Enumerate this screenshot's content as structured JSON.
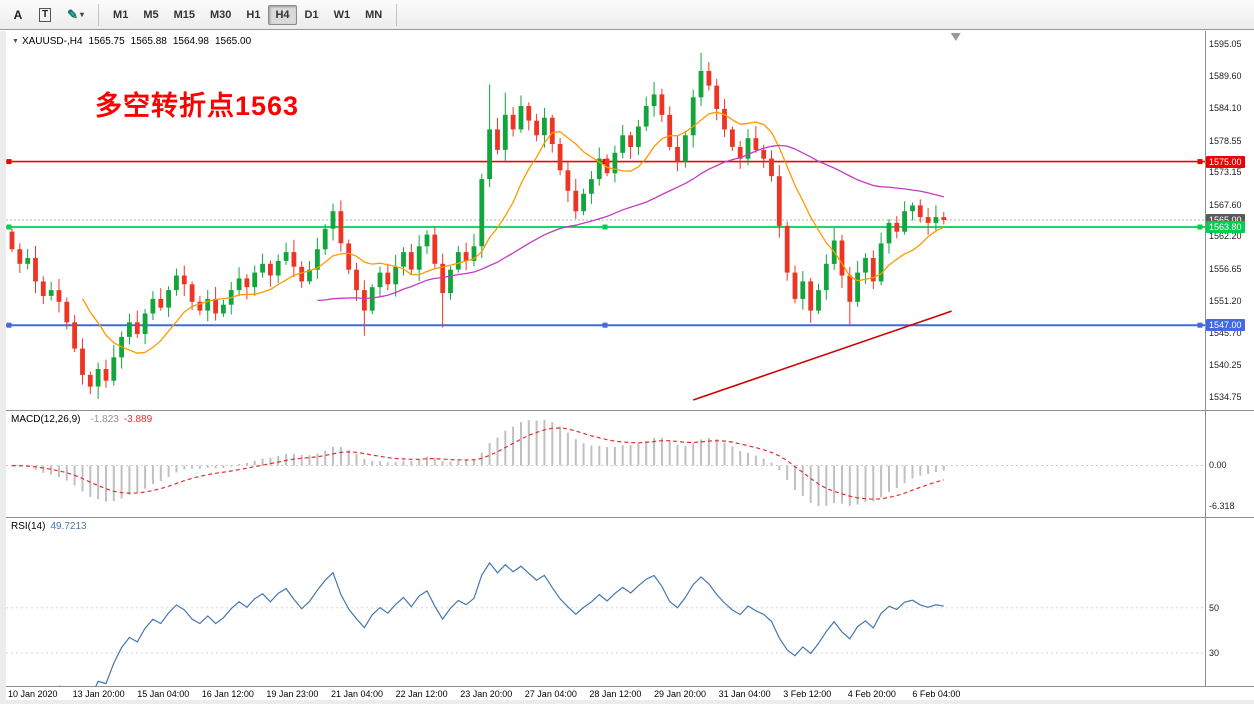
{
  "toolbar": {
    "tool_buttons": [
      {
        "name": "cursor-tool",
        "label": "A"
      },
      {
        "name": "text-tool",
        "label": "T"
      }
    ],
    "draw_dropdown": {
      "glyph": "✎",
      "arrow": "▾"
    },
    "timeframes": [
      "M1",
      "M5",
      "M15",
      "M30",
      "H1",
      "H4",
      "D1",
      "W1",
      "MN"
    ],
    "active_timeframe": "H4"
  },
  "chart": {
    "symbol_title": "XAUUSD-,H4",
    "expand_icon": "▼",
    "ohlc": {
      "open": "1565.75",
      "high": "1565.88",
      "low": "1564.98",
      "close": "1565.00"
    },
    "annotation": {
      "text": "多空转折点1563",
      "color": "#ff0000"
    }
  },
  "chart_data": {
    "type": "candlestick",
    "symbol": "XAUUSD",
    "timeframe": "H4",
    "title": "XAUUSD-,H4 1565.75 1565.88 1564.98 1565.00",
    "price_range": {
      "min": 1533.0,
      "max": 1597.0
    },
    "y_ticks": [
      "1595.05",
      "1589.60",
      "1584.10",
      "1578.55",
      "1573.15",
      "1567.60",
      "1562.20",
      "1556.65",
      "1551.20",
      "1545.70",
      "1540.25",
      "1534.75"
    ],
    "candles": {
      "up_color": "#11a53b",
      "down_color": "#ee3524",
      "first_open": 1563.0,
      "closes": [
        1560.0,
        1557.5,
        1558.5,
        1554.5,
        1552.0,
        1553.0,
        1551.0,
        1547.5,
        1543.0,
        1538.5,
        1536.5,
        1539.5,
        1537.5,
        1541.5,
        1545.0,
        1547.5,
        1545.5,
        1549.0,
        1551.5,
        1550.0,
        1553.0,
        1555.5,
        1554.0,
        1551.0,
        1549.5,
        1551.5,
        1549.0,
        1550.5,
        1553.0,
        1555.0,
        1553.5,
        1556.0,
        1557.5,
        1555.5,
        1558.0,
        1559.5,
        1557.0,
        1554.5,
        1556.5,
        1560.0,
        1563.5,
        1566.5,
        1561.0,
        1556.5,
        1553.0,
        1549.5,
        1553.5,
        1556.0,
        1554.0,
        1557.0,
        1559.5,
        1556.5,
        1560.5,
        1562.5,
        1557.5,
        1552.5,
        1556.5,
        1559.5,
        1558.0,
        1560.5,
        1572.0,
        1580.5,
        1577.0,
        1583.0,
        1580.5,
        1584.5,
        1582.0,
        1579.5,
        1582.5,
        1578.0,
        1573.5,
        1570.0,
        1566.5,
        1569.5,
        1572.0,
        1575.5,
        1573.0,
        1576.5,
        1579.5,
        1577.5,
        1581.0,
        1584.5,
        1586.5,
        1583.0,
        1577.5,
        1575.0,
        1579.5,
        1586.0,
        1590.5,
        1588.0,
        1584.0,
        1580.5,
        1577.5,
        1575.5,
        1579.0,
        1577.0,
        1575.5,
        1572.5,
        1564.0,
        1556.0,
        1551.5,
        1554.5,
        1549.5,
        1553.0,
        1557.5,
        1561.5,
        1555.5,
        1551.0,
        1556.0,
        1558.5,
        1554.5,
        1561.0,
        1564.5,
        1563.0,
        1566.5,
        1567.5,
        1565.5,
        1564.5,
        1565.5,
        1565.0
      ],
      "wick_overrides": {
        "10": {
          "l": 1535.2
        },
        "12": {
          "l": 1536.3
        },
        "45": {
          "l": 1545.2
        },
        "55": {
          "l": 1546.6
        },
        "61": {
          "h": 1588.2
        },
        "63": {
          "h": 1586.8
        },
        "88": {
          "h": 1593.6
        },
        "89": {
          "h": 1592.0
        },
        "102": {
          "l": 1547.4
        },
        "107": {
          "l": 1547.1
        }
      }
    },
    "moving_averages": [
      {
        "name": "ma-fast",
        "period": 10,
        "color": "#ff9a00"
      },
      {
        "name": "ma-slow",
        "period": 40,
        "color": "#c23bc2"
      }
    ],
    "hlines": [
      {
        "price": 1575.0,
        "label": "1575.00",
        "color": "#f00000",
        "width": 1.6
      },
      {
        "price": 1563.8,
        "label": "1563.80",
        "color": "#00cf4e",
        "width": 1.8
      },
      {
        "price": 1547.0,
        "label": "1547.00",
        "color": "#4169e1",
        "width": 2.0
      }
    ],
    "current_price": {
      "value": 1565.0,
      "label": "1565.00",
      "line_color": "#b0b0b0",
      "label_bg": "#5a5a5a"
    },
    "trendline": {
      "color": "#cc0000",
      "start_index": 87,
      "start_price": 1534.2,
      "end_index": 120,
      "end_price": 1549.4
    },
    "macd": {
      "title": "MACD(12,26,9)",
      "value_main": "-1.823",
      "value_signal": "-3.889",
      "histogram_color": "#c0c0c0",
      "signal_color": "#e03030",
      "value_main_color": "#909090",
      "scale_labels": [
        {
          "value": 0,
          "text": "0.00"
        },
        {
          "value": -6.318,
          "text": "-6.318"
        }
      ]
    },
    "rsi": {
      "title": "RSI(14)",
      "value": "49.7213",
      "line_color": "#4577b0",
      "range": {
        "min": 18,
        "max": 88
      },
      "levels": [
        {
          "value": 50,
          "text": "50"
        },
        {
          "value": 30,
          "text": "30"
        }
      ]
    },
    "time_axis": [
      "10 Jan 2020",
      "13 Jan 20:00",
      "15 Jan 04:00",
      "16 Jan 12:00",
      "19 Jan 23:00",
      "21 Jan 04:00",
      "22 Jan 12:00",
      "23 Jan 20:00",
      "27 Jan 04:00",
      "28 Jan 12:00",
      "29 Jan 20:00",
      "31 Jan 04:00",
      "3 Feb 12:00",
      "4 Feb 20:00",
      "6 Feb 04:00"
    ]
  }
}
